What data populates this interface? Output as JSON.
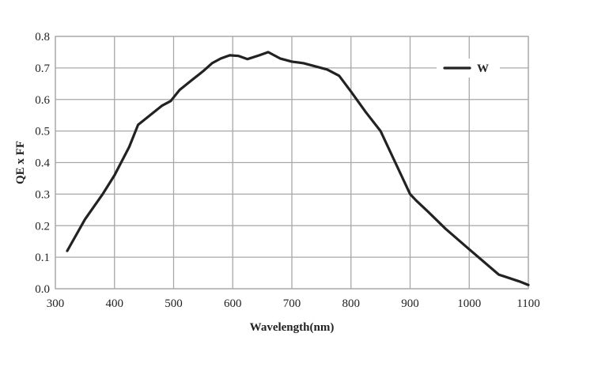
{
  "chart_data": {
    "type": "line",
    "xlabel": "Wavelength(nm)",
    "ylabel": "QE x FF",
    "xlim": [
      300,
      1100
    ],
    "ylim": [
      0.0,
      0.8
    ],
    "x_ticks": [
      "300",
      "400",
      "500",
      "600",
      "700",
      "800",
      "900",
      "1000",
      "1100"
    ],
    "y_ticks": [
      "0.0",
      "0.1",
      "0.2",
      "0.3",
      "0.4",
      "0.5",
      "0.6",
      "0.7",
      "0.8"
    ],
    "grid": true,
    "legend_position": "top-right",
    "series": [
      {
        "name": "W",
        "color": "#222222",
        "x": [
          320,
          350,
          380,
          400,
          425,
          440,
          460,
          480,
          495,
          510,
          530,
          550,
          565,
          580,
          595,
          610,
          625,
          645,
          660,
          680,
          700,
          720,
          740,
          760,
          780,
          800,
          825,
          850,
          875,
          900,
          910,
          930,
          960,
          1000,
          1050,
          1085,
          1100
        ],
        "y": [
          0.12,
          0.22,
          0.3,
          0.36,
          0.45,
          0.52,
          0.55,
          0.58,
          0.595,
          0.63,
          0.66,
          0.69,
          0.715,
          0.73,
          0.74,
          0.738,
          0.728,
          0.74,
          0.75,
          0.73,
          0.72,
          0.715,
          0.705,
          0.695,
          0.675,
          0.625,
          0.56,
          0.5,
          0.4,
          0.3,
          0.28,
          0.245,
          0.19,
          0.125,
          0.045,
          0.023,
          0.012
        ]
      }
    ]
  }
}
